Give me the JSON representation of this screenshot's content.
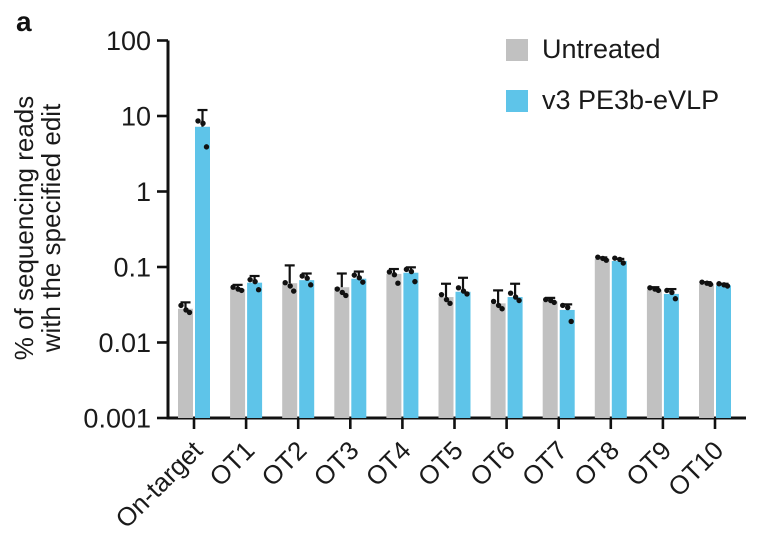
{
  "panel_label": "a",
  "chart_data": {
    "type": "bar",
    "scale_y": "log",
    "title": "",
    "ylabel_lines": [
      "% of sequencing reads",
      "with the specified edit"
    ],
    "ylim": [
      0.001,
      100
    ],
    "y_tick_values": [
      100,
      10,
      1,
      0.1,
      0.01,
      0.001
    ],
    "y_tick_labels": [
      "100",
      "10",
      "1",
      "0.1",
      "0.01",
      "0.001"
    ],
    "grid": false,
    "legend_position": "top-right",
    "categories": [
      "On-target",
      "OT1",
      "OT2",
      "OT3",
      "OT4",
      "OT5",
      "OT6",
      "OT7",
      "OT8",
      "OT9",
      "OT10"
    ],
    "series": [
      {
        "name": "Untreated",
        "color": "#C1C1C1",
        "values": [
          0.028,
          0.051,
          0.061,
          0.054,
          0.081,
          0.04,
          0.033,
          0.035,
          0.128,
          0.05,
          0.06
        ],
        "error_top": [
          0.034,
          0.058,
          0.105,
          0.082,
          0.094,
          0.06,
          0.049,
          0.039,
          0.134,
          0.054,
          0.063
        ],
        "points": [
          [
            0.031,
            0.027,
            0.025
          ],
          [
            0.054,
            0.051,
            0.049
          ],
          [
            0.062,
            0.056,
            0.048
          ],
          [
            0.051,
            0.046,
            0.042
          ],
          [
            0.086,
            0.079,
            0.061
          ],
          [
            0.043,
            0.037,
            0.033
          ],
          [
            0.035,
            0.031,
            0.028
          ],
          [
            0.037,
            0.036,
            0.034
          ],
          [
            0.135,
            0.13,
            0.123
          ],
          [
            0.053,
            0.051,
            0.049
          ],
          [
            0.063,
            0.061,
            0.059
          ]
        ]
      },
      {
        "name": "v3 PE3b-eVLP",
        "color": "#5EC4E9",
        "values": [
          7.2,
          0.062,
          0.067,
          0.07,
          0.084,
          0.047,
          0.04,
          0.027,
          0.12,
          0.044,
          0.057
        ],
        "error_top": [
          12.0,
          0.076,
          0.082,
          0.087,
          0.099,
          0.072,
          0.06,
          0.032,
          0.128,
          0.051,
          0.06
        ],
        "points": [
          [
            8.6,
            8.0,
            3.9
          ],
          [
            0.068,
            0.064,
            0.05
          ],
          [
            0.076,
            0.071,
            0.058
          ],
          [
            0.078,
            0.072,
            0.063
          ],
          [
            0.093,
            0.087,
            0.064
          ],
          [
            0.053,
            0.048,
            0.044
          ],
          [
            0.045,
            0.04,
            0.036
          ],
          [
            0.031,
            0.029,
            0.019
          ],
          [
            0.131,
            0.126,
            0.113
          ],
          [
            0.049,
            0.046,
            0.038
          ],
          [
            0.06,
            0.058,
            0.056
          ]
        ]
      }
    ],
    "colors": {
      "axis": "#111111",
      "points": "#111111",
      "text": "#1a1a1a"
    }
  }
}
